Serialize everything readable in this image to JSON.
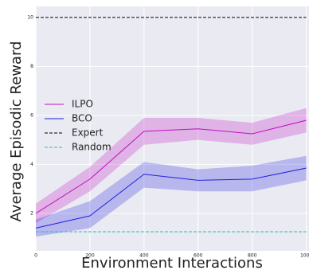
{
  "chart_data": {
    "type": "line",
    "xlabel": "Environment Interactions",
    "ylabel": "Average Episodic Reward",
    "x": [
      0,
      200,
      400,
      600,
      800,
      1000
    ],
    "xlim": [
      0,
      1010
    ],
    "ylim": [
      0.47,
      10.45
    ],
    "xticks": [
      0,
      200,
      400,
      600,
      800,
      1000
    ],
    "yticks": [
      2,
      4,
      6,
      8,
      10
    ],
    "grid": true,
    "legend": "left",
    "series": [
      {
        "name": "ILPO",
        "color": "#c010c0",
        "style": "solid",
        "values": [
          2.0,
          3.4,
          5.35,
          5.45,
          5.25,
          5.8
        ],
        "upper": [
          2.4,
          3.9,
          5.9,
          5.9,
          5.7,
          6.3
        ],
        "lower": [
          1.6,
          2.9,
          4.8,
          5.0,
          4.8,
          5.3
        ]
      },
      {
        "name": "BCO",
        "color": "#2020e0",
        "style": "solid",
        "values": [
          1.4,
          1.9,
          3.6,
          3.35,
          3.4,
          3.85
        ],
        "upper": [
          1.75,
          2.5,
          4.1,
          3.8,
          3.95,
          4.35
        ],
        "lower": [
          1.05,
          1.4,
          3.05,
          2.9,
          2.9,
          3.35
        ]
      },
      {
        "name": "Expert",
        "color": "#000000",
        "style": "dashed",
        "values": [
          10,
          10,
          10,
          10,
          10,
          10
        ]
      },
      {
        "name": "Random",
        "color": "#20c0c0",
        "style": "dashed",
        "values": [
          1.25,
          1.25,
          1.25,
          1.25,
          1.25,
          1.25
        ]
      }
    ]
  }
}
